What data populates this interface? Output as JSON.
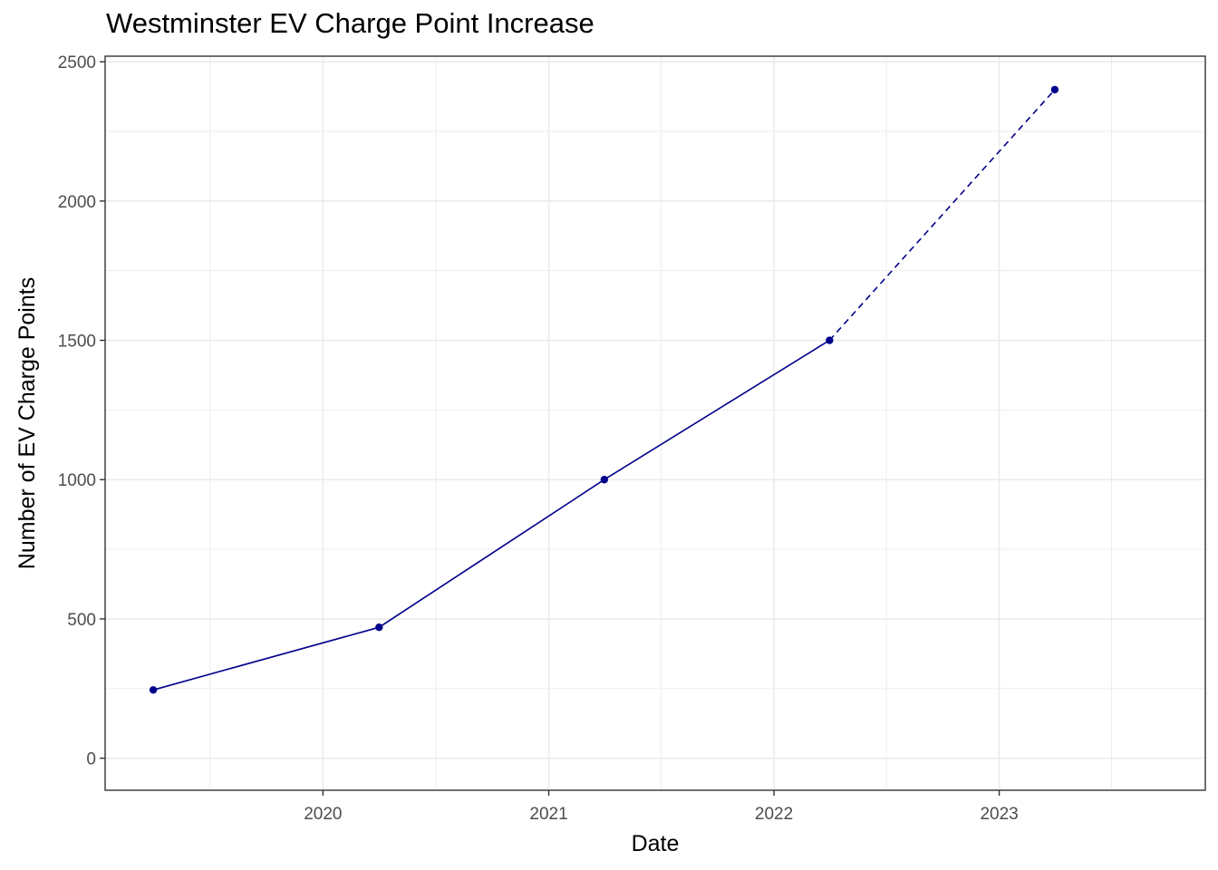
{
  "chart_data": {
    "type": "line",
    "title": "Westminster EV Charge Point Increase",
    "xlabel": "Date",
    "ylabel": "Number of EV Charge Points",
    "x_ticks": [
      "2020",
      "2021",
      "2022",
      "2023"
    ],
    "y_ticks": [
      0,
      500,
      1000,
      1500,
      2000,
      2500
    ],
    "ylim": [
      -115,
      2520
    ],
    "xlim": [
      "2019-01-13",
      "2023-12-01"
    ],
    "grid": true,
    "colors": {
      "line": "#00008b",
      "grid": "#ebebeb",
      "border": "#333333"
    },
    "series": [
      {
        "style": "solid",
        "points": [
          {
            "x": "2019-04-01",
            "y": 245
          },
          {
            "x": "2020-04-01",
            "y": 470
          },
          {
            "x": "2021-04-01",
            "y": 1000
          },
          {
            "x": "2022-04-01",
            "y": 1500
          }
        ]
      },
      {
        "style": "dashed",
        "points": [
          {
            "x": "2022-04-01",
            "y": 1500
          },
          {
            "x": "2023-04-01",
            "y": 2400
          }
        ]
      }
    ]
  }
}
